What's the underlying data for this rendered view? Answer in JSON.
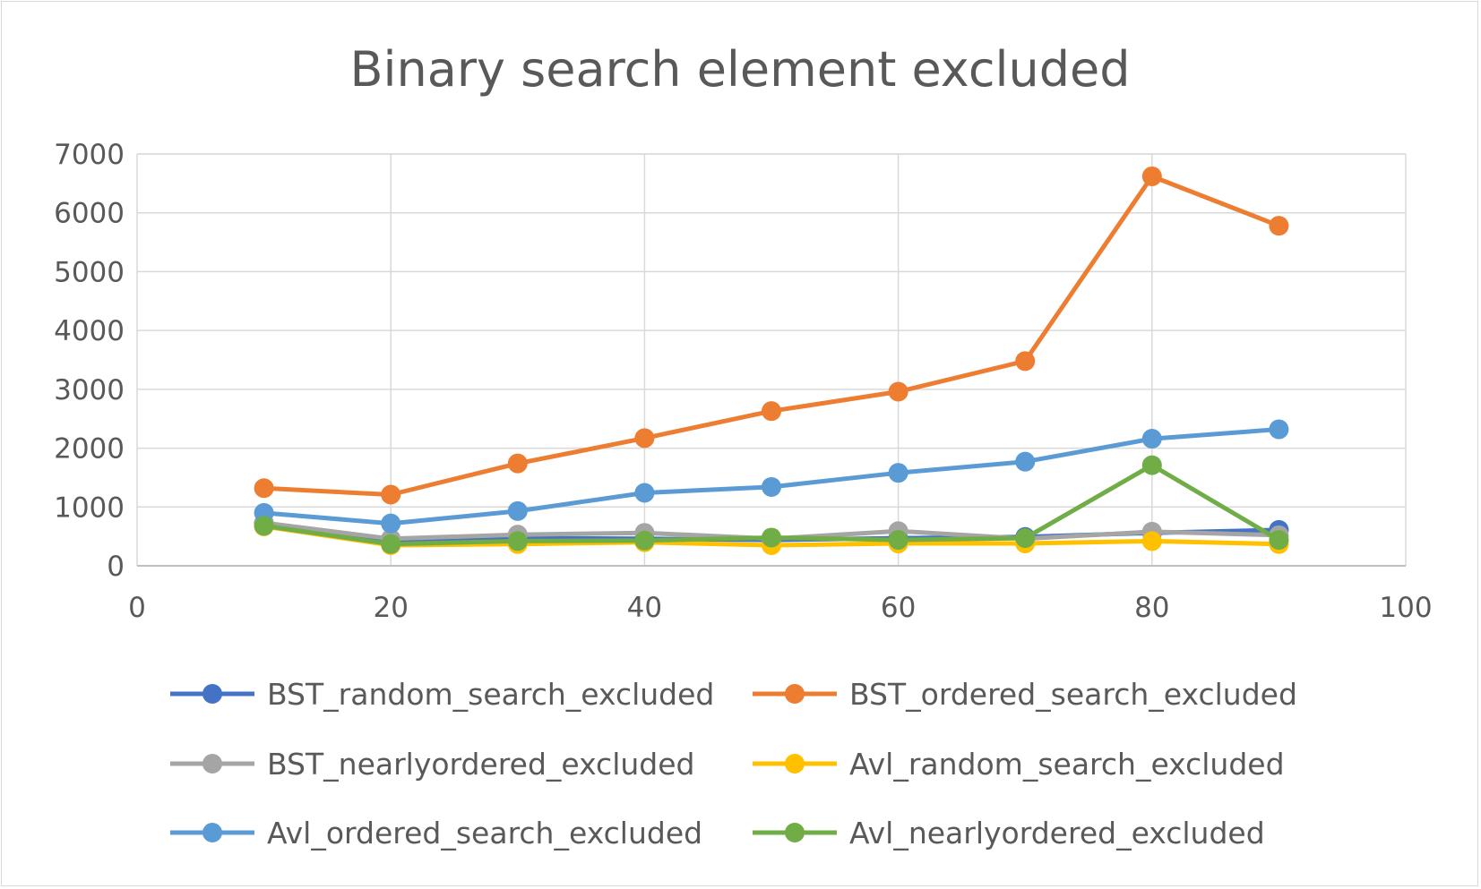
{
  "chart_data": {
    "type": "line",
    "title": "Binary search element excluded",
    "xlabel": "",
    "ylabel": "",
    "xlim": [
      0,
      100
    ],
    "ylim": [
      0,
      7000
    ],
    "xticks": [
      "0",
      "20",
      "40",
      "60",
      "80",
      "100"
    ],
    "yticks": [
      "0",
      "1000",
      "2000",
      "3000",
      "4000",
      "5000",
      "6000",
      "7000"
    ],
    "grid": true,
    "legend_position": "bottom",
    "x": [
      10,
      20,
      30,
      40,
      50,
      60,
      70,
      80,
      90
    ],
    "series": [
      {
        "name": "BST_random_search_excluded",
        "color": "#4472C4",
        "values": [
          720,
          420,
          470,
          460,
          440,
          470,
          490,
          560,
          610
        ]
      },
      {
        "name": "BST_ordered_search_excluded",
        "color": "#ED7D31",
        "values": [
          1320,
          1210,
          1740,
          2170,
          2630,
          2960,
          3480,
          6620,
          5780
        ]
      },
      {
        "name": "BST_nearlyordered_excluded",
        "color": "#A5A5A5",
        "values": [
          730,
          460,
          530,
          560,
          460,
          590,
          460,
          580,
          520
        ]
      },
      {
        "name": "Avl_random_search_excluded",
        "color": "#FFC000",
        "values": [
          670,
          350,
          370,
          400,
          350,
          380,
          380,
          420,
          370
        ]
      },
      {
        "name": "Avl_ordered_search_excluded",
        "color": "#5B9BD5",
        "values": [
          900,
          720,
          930,
          1240,
          1340,
          1580,
          1770,
          2160,
          2320
        ]
      },
      {
        "name": "Avl_nearlyordered_excluded",
        "color": "#70AD47",
        "values": [
          680,
          370,
          420,
          430,
          480,
          440,
          470,
          1710,
          440
        ]
      }
    ]
  }
}
